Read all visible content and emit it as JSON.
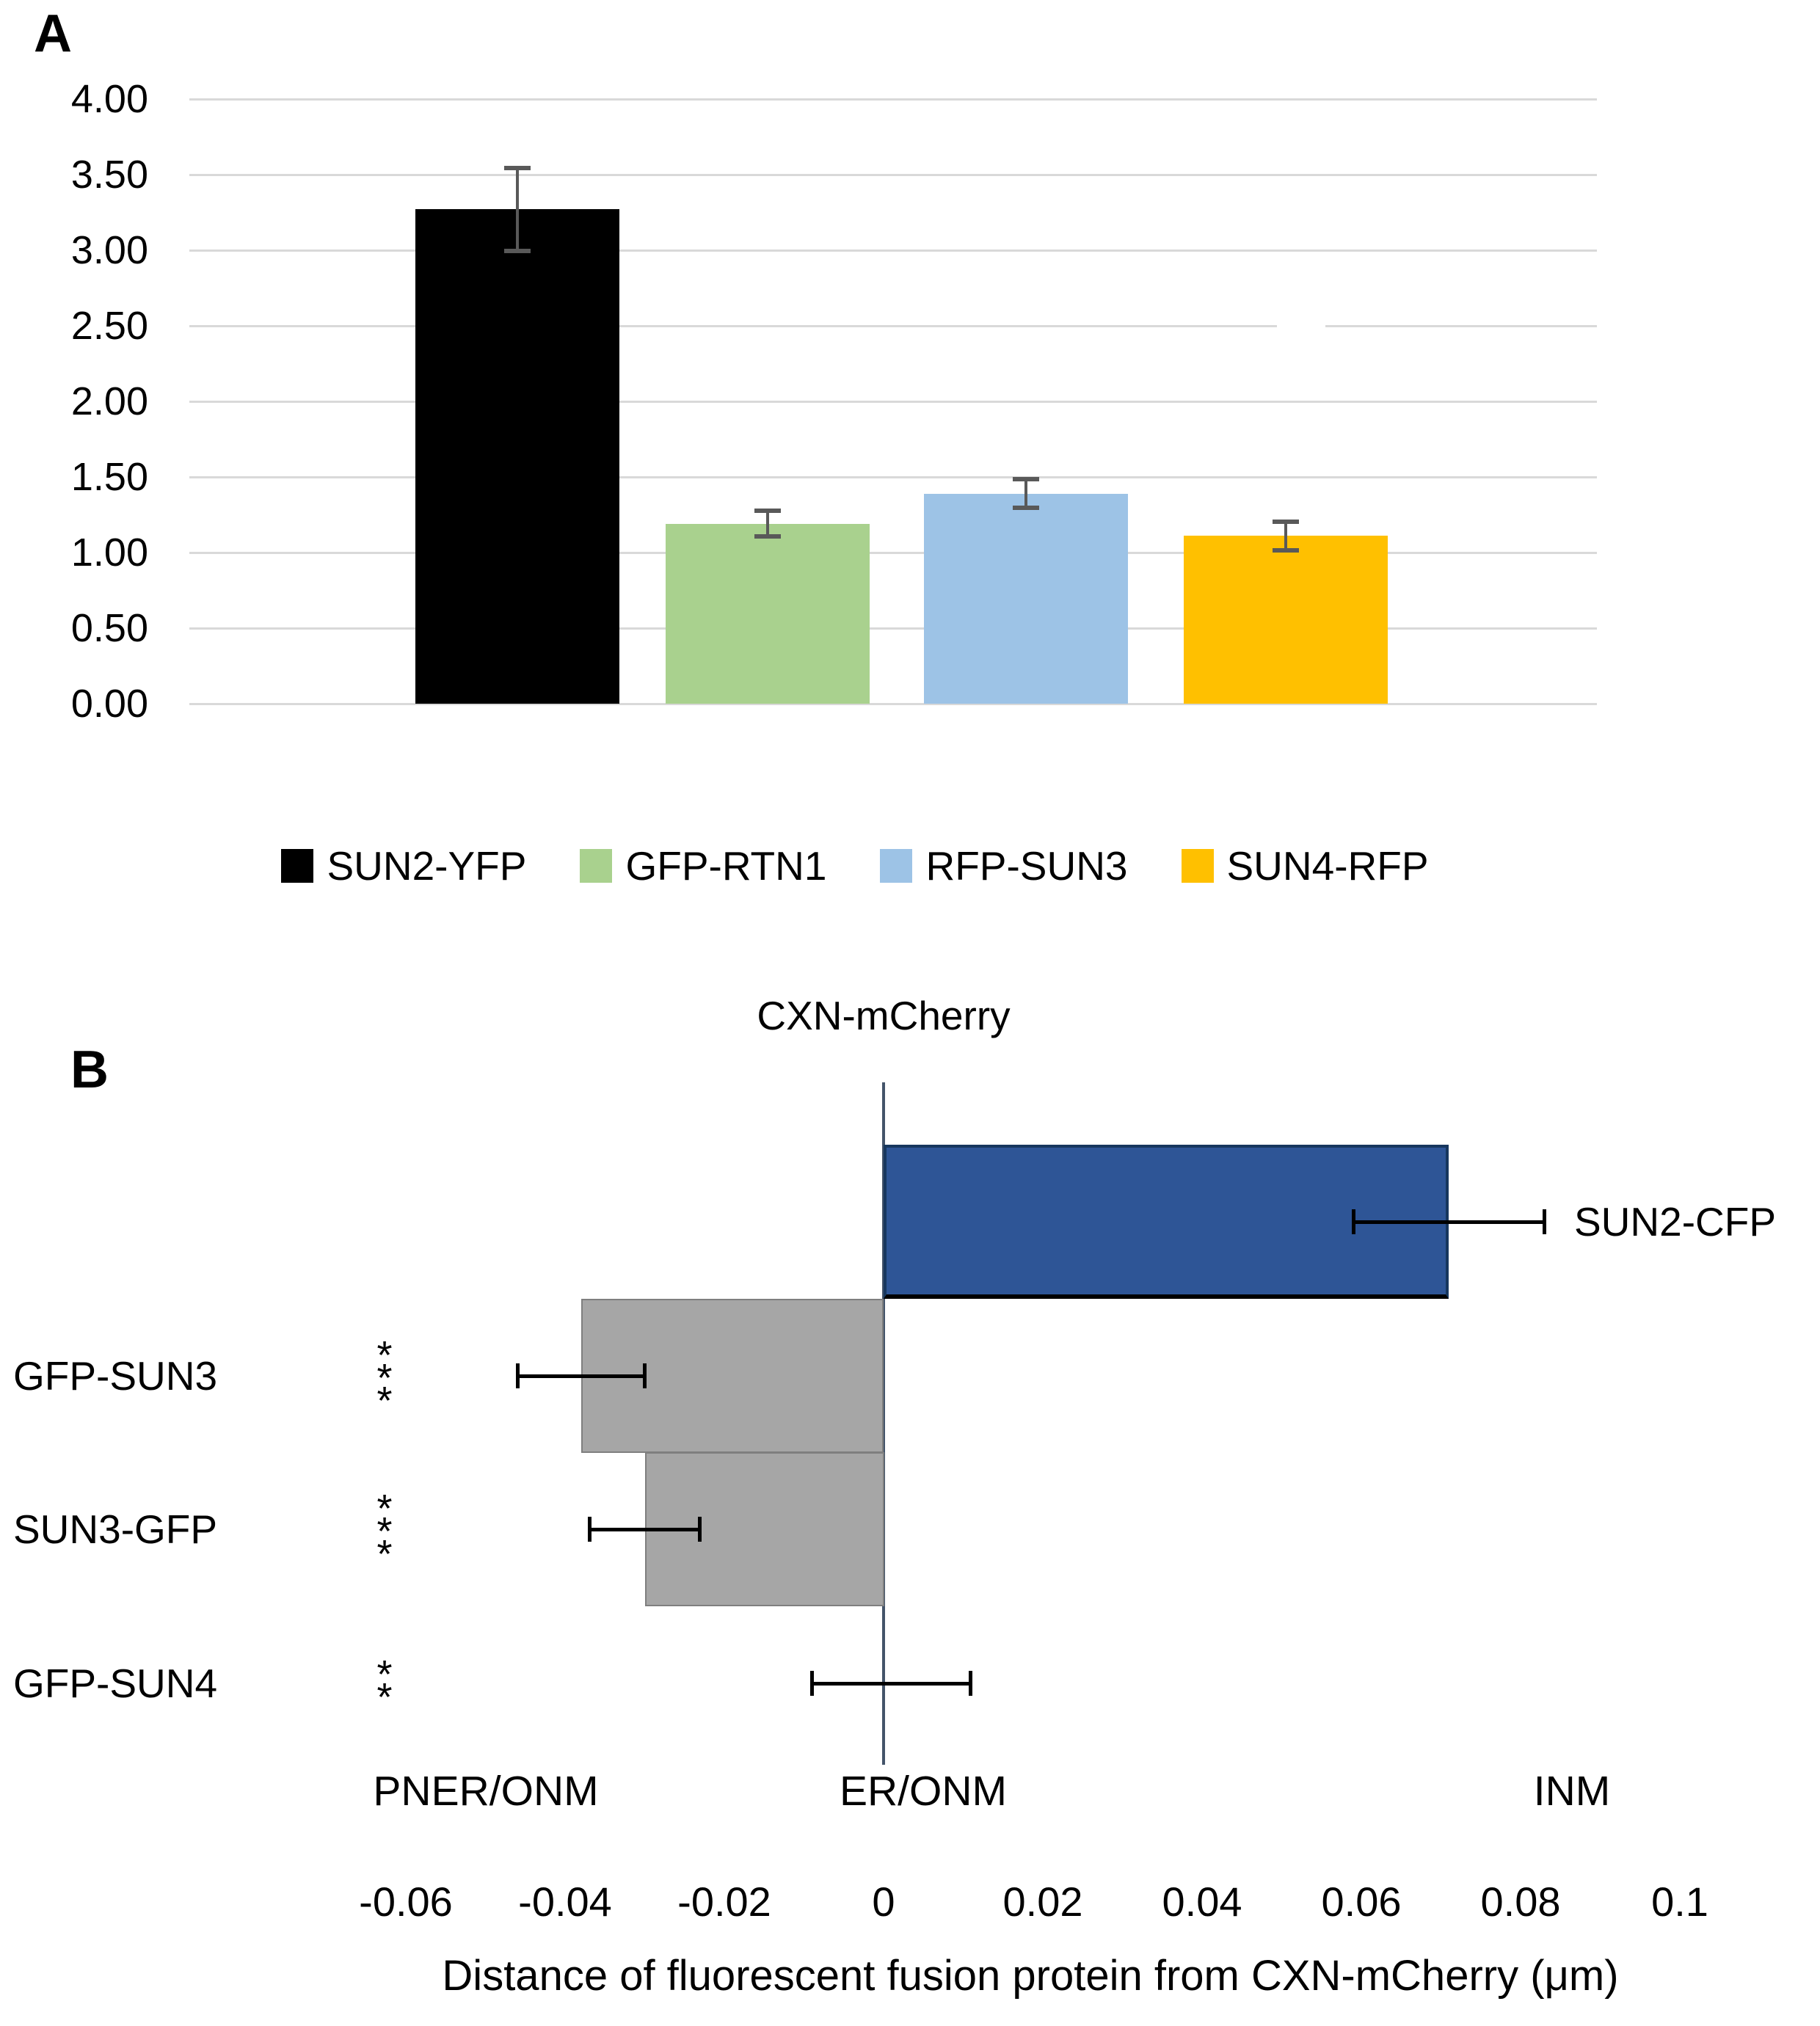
{
  "figure": {
    "panel_a_label": "A",
    "panel_b_label": "B"
  },
  "chart_data": [
    {
      "panel": "A",
      "type": "bar",
      "title": "",
      "xlabel": "",
      "ylabel": "",
      "categories": [
        "SUN2-YFP",
        "GFP-RTN1",
        "RFP-SUN3",
        "SUN4-RFP"
      ],
      "values": [
        3.27,
        1.19,
        1.39,
        1.11
      ],
      "errors": [
        0.28,
        0.09,
        0.1,
        0.1
      ],
      "colors": [
        "#000000",
        "#A9D18E",
        "#9DC3E6",
        "#FFC000"
      ],
      "ylim": [
        0,
        4
      ],
      "ytick_labels": [
        "4.00",
        "3.50",
        "3.00",
        "2.50",
        "2.00",
        "1.50",
        "1.00",
        "0.50",
        "0.00"
      ],
      "grid": true,
      "legend_position": "bottom",
      "legend_entries": [
        "SUN2-YFP",
        "GFP-RTN1",
        "RFP-SUN3",
        "SUN4-RFP"
      ]
    },
    {
      "panel": "B",
      "type": "bar",
      "orientation": "horizontal",
      "title": "CXN-mCherry",
      "xlabel": "Distance of fluorescent fusion protein from CXN-mCherry (μm)",
      "categories": [
        "SUN2-CFP",
        "GFP-SUN3",
        "SUN3-GFP",
        "GFP-SUN4"
      ],
      "values": [
        0.071,
        -0.038,
        -0.03,
        0.001
      ],
      "errors": [
        0.012,
        0.008,
        0.007,
        0.01
      ],
      "colors": [
        "#2E5596",
        "#A6A6A6",
        "#A6A6A6",
        "#A6A6A6"
      ],
      "significance": [
        "",
        "***",
        "***",
        "**"
      ],
      "xlim": [
        -0.06,
        0.1
      ],
      "xtick_labels": [
        "-0.06",
        "-0.04",
        "-0.02",
        "0",
        "0.02",
        "0.04",
        "0.06",
        "0.08",
        "0.1"
      ],
      "xtick_values": [
        -0.06,
        -0.04,
        -0.02,
        0,
        0.02,
        0.04,
        0.06,
        0.08,
        0.1
      ],
      "zone_labels": [
        "PNER/ONM",
        "ER/ONM",
        "INM"
      ],
      "zero_line_color": "#44546A",
      "grid": false,
      "legend_position": "none"
    }
  ]
}
